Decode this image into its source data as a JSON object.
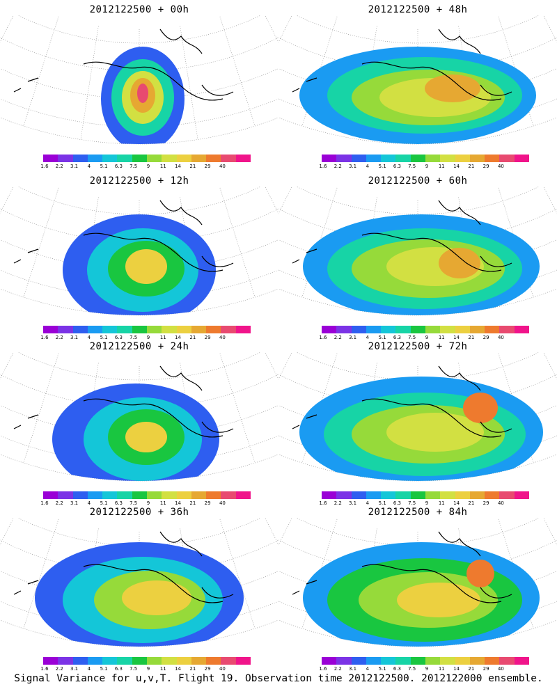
{
  "panels": [
    {
      "title": "2012122500 + 00h",
      "lead": "00h"
    },
    {
      "title": "2012122500 + 48h",
      "lead": "48h"
    },
    {
      "title": "2012122500 + 12h",
      "lead": "12h"
    },
    {
      "title": "2012122500 + 60h",
      "lead": "60h"
    },
    {
      "title": "2012122500 + 24h",
      "lead": "24h"
    },
    {
      "title": "2012122500 + 72h",
      "lead": "72h"
    },
    {
      "title": "2012122500 + 36h",
      "lead": "36h"
    },
    {
      "title": "2012122500 + 84h",
      "lead": "84h"
    }
  ],
  "colorbar": {
    "labels": [
      "1.6",
      "2.2",
      "3.1",
      "4",
      "5.1",
      "6.3",
      "7.5",
      "9",
      "11",
      "14",
      "21",
      "29",
      "40"
    ],
    "colors": [
      "#9a00d6",
      "#7b33e6",
      "#2e5ef0",
      "#1a9bf2",
      "#14c6d8",
      "#17d4a6",
      "#19c640",
      "#96da3a",
      "#d2e042",
      "#ecd040",
      "#e6a832",
      "#ee7a2e",
      "#e84a70",
      "#f0148a"
    ]
  },
  "footer": "Signal Variance for u,v,T. Flight 19. Observation time 2012122500. 2012122000 ensemble."
}
